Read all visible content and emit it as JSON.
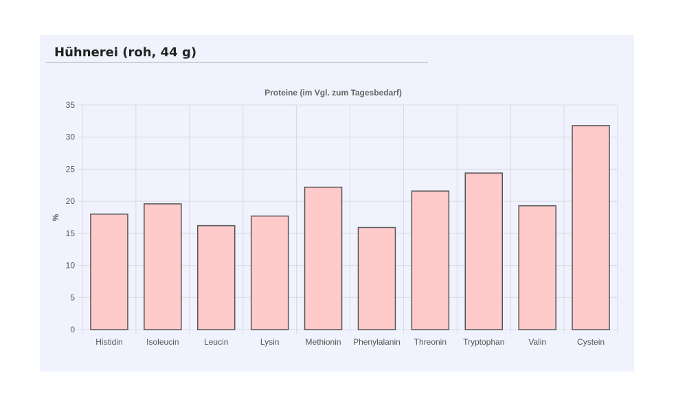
{
  "panel": {
    "title": "Hühnerei (roh, 44 g)"
  },
  "colors": {
    "panel_background": "#f0f3fd",
    "bar_fill": "#ffcaca",
    "bar_stroke": "#555555",
    "grid": "#d8d8e2",
    "text": "#555555"
  },
  "chart_data": {
    "type": "bar",
    "title": "Proteine (im Vgl. zum Tagesbedarf)",
    "xlabel": "",
    "ylabel": "%",
    "categories": [
      "Histidin",
      "Isoleucin",
      "Leucin",
      "Lysin",
      "Methionin",
      "Phenylalanin",
      "Threonin",
      "Tryptophan",
      "Valin",
      "Cystein"
    ],
    "values": [
      18.0,
      19.6,
      16.2,
      17.7,
      22.2,
      15.9,
      21.6,
      24.4,
      19.3,
      31.8
    ],
    "ylim": [
      0,
      35
    ],
    "yticks": [
      "0",
      "5",
      "10",
      "15",
      "20",
      "25",
      "30",
      "35"
    ],
    "grid": true,
    "legend": "none"
  }
}
